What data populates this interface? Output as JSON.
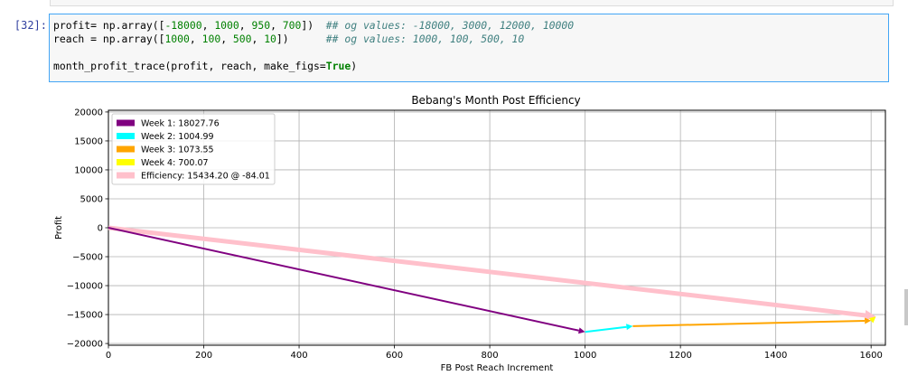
{
  "cell": {
    "prompt": "[32]:",
    "code": {
      "line1": {
        "var": "profit",
        "eq": "= np.array([",
        "v1": "-18000",
        "v2": "1000",
        "v3": "950",
        "v4": "700",
        "close": "])",
        "comment": "## og values: -18000, 3000, 12000, 10000"
      },
      "line2": {
        "var": "reach",
        "eq": " = np.array([",
        "v1": "1000",
        "v2": "100",
        "v3": "500",
        "v4": "10",
        "close": "])",
        "comment": "## og values: 1000, 100, 500, 10"
      },
      "line4": {
        "call": "month_profit_trace(profit, reach, make_figs=",
        "kw": "True",
        "close": ")"
      }
    }
  },
  "chart_data": {
    "type": "line",
    "title": "Bebang's Month Post Efficiency",
    "xlabel": "FB Post Reach Increment",
    "ylabel": "Profit",
    "xlim": [
      0,
      1630
    ],
    "ylim": [
      -20300,
      20300
    ],
    "x_ticks": [
      0,
      200,
      400,
      600,
      800,
      1000,
      1200,
      1400,
      1600
    ],
    "y_ticks": [
      20000,
      15000,
      10000,
      5000,
      0,
      -5000,
      -10000,
      -15000,
      -20000
    ],
    "grid": true,
    "legend_placement": "top-left",
    "series": [
      {
        "name": "Week 1: 18027.76",
        "color": "#800080",
        "start": [
          0,
          0
        ],
        "end": [
          1000,
          -18000
        ],
        "arrow": true
      },
      {
        "name": "Week 2: 1004.99",
        "color": "#00ffff",
        "start": [
          1000,
          -18000
        ],
        "end": [
          1100,
          -17000
        ],
        "arrow": true
      },
      {
        "name": "Week 3: 1073.55",
        "color": "#ffa500",
        "start": [
          1100,
          -17000
        ],
        "end": [
          1600,
          -16050
        ],
        "arrow": true
      },
      {
        "name": "Week 4: 700.07",
        "color": "#ffff00",
        "start": [
          1600,
          -16050
        ],
        "end": [
          1610,
          -15350
        ],
        "arrow": true
      },
      {
        "name": "Efficiency: 15434.20 @ -84.01",
        "color": "#ffc0cb",
        "start": [
          0,
          0
        ],
        "end": [
          1610,
          -15350
        ],
        "arrow": true,
        "thick": true
      }
    ]
  }
}
